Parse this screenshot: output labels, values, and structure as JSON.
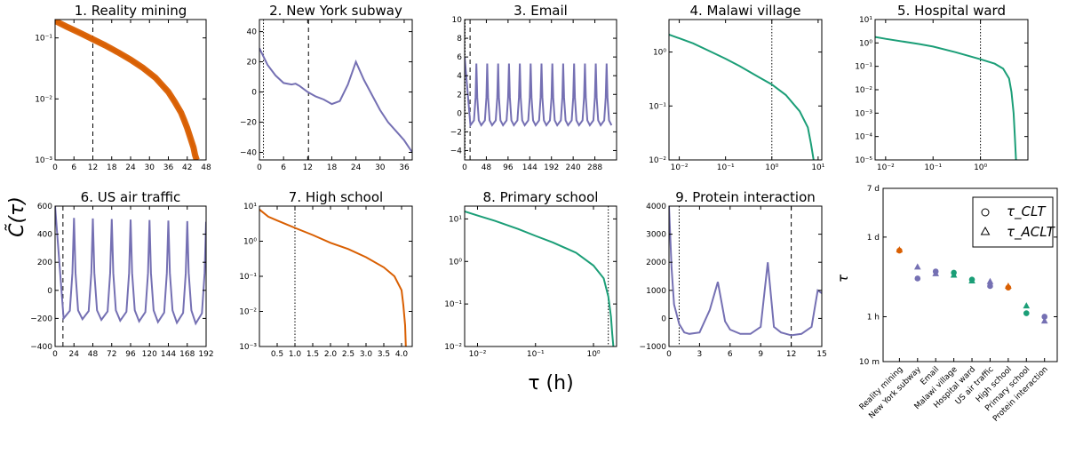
{
  "figure": {
    "ylabel_shared": "C̃(τ)",
    "xlabel_shared": "τ (h)"
  },
  "chart_data": [
    {
      "id": "p1",
      "type": "line",
      "title": "1. Reality mining",
      "color": "#d95f02",
      "xscale": "linear",
      "yscale": "log",
      "xlim": [
        0,
        48
      ],
      "ylim": [
        0.001,
        0.2
      ],
      "xticks": [
        0,
        6,
        12,
        18,
        24,
        30,
        36,
        42,
        48
      ],
      "yticks": [
        {
          "v": 0.1,
          "label": "10⁻¹"
        },
        {
          "v": 0.01,
          "label": "10⁻²"
        },
        {
          "v": 0.001,
          "label": "10⁻³"
        }
      ],
      "vlines": [
        {
          "x": 12,
          "style": "dashed"
        }
      ],
      "band": true,
      "series": [
        {
          "x": [
            0,
            4,
            8,
            12,
            16,
            20,
            24,
            28,
            32,
            36,
            38,
            40,
            41,
            42,
            43,
            44,
            44.5,
            45
          ],
          "y": [
            0.19,
            0.15,
            0.12,
            0.095,
            0.075,
            0.058,
            0.044,
            0.032,
            0.022,
            0.013,
            0.009,
            0.006,
            0.0045,
            0.0033,
            0.0023,
            0.0016,
            0.0012,
            0.001
          ]
        }
      ]
    },
    {
      "id": "p2",
      "type": "line",
      "title": "2. New York subway",
      "color": "#7570b3",
      "xscale": "linear",
      "yscale": "linear",
      "xlim": [
        0,
        38
      ],
      "ylim": [
        -45,
        48
      ],
      "xticks": [
        0,
        6,
        12,
        18,
        24,
        30,
        36
      ],
      "yticks": [
        {
          "v": 40,
          "label": "40"
        },
        {
          "v": 20,
          "label": "20"
        },
        {
          "v": 0,
          "label": "0"
        },
        {
          "v": -20,
          "label": "−20"
        },
        {
          "v": -40,
          "label": "−40"
        }
      ],
      "vlines": [
        {
          "x": 1,
          "style": "dotted"
        },
        {
          "x": 12.2,
          "style": "dashed"
        }
      ],
      "series": [
        {
          "x": [
            0,
            2,
            4,
            6,
            8,
            9,
            10,
            12,
            14,
            16,
            18,
            20,
            22,
            24,
            26,
            28,
            30,
            32,
            34,
            36,
            38
          ],
          "y": [
            29,
            18,
            11,
            6,
            5,
            5.5,
            4,
            0,
            -3,
            -5,
            -8,
            -6,
            5,
            20,
            8,
            -2,
            -12,
            -20,
            -26,
            -32,
            -40
          ]
        }
      ]
    },
    {
      "id": "p3",
      "type": "line",
      "title": "3. Email",
      "color": "#7570b3",
      "xscale": "linear",
      "yscale": "linear",
      "xlim": [
        0,
        336
      ],
      "ylim": [
        -5,
        10
      ],
      "xticks": [
        0,
        48,
        96,
        144,
        192,
        240,
        288
      ],
      "yticks": [
        {
          "v": 10,
          "label": "10"
        },
        {
          "v": 8,
          "label": "8"
        },
        {
          "v": 6,
          "label": "6"
        },
        {
          "v": 4,
          "label": "4"
        },
        {
          "v": 2,
          "label": "2"
        },
        {
          "v": 0,
          "label": "0"
        },
        {
          "v": -2,
          "label": "−2"
        },
        {
          "v": -4,
          "label": "−4"
        }
      ],
      "vlines": [
        {
          "x": 1,
          "style": "dotted"
        },
        {
          "x": 12,
          "style": "dashed"
        }
      ],
      "oscillation": {
        "period": 24,
        "peak": 5.3,
        "trough": -1.3,
        "start": 2,
        "init": 6
      },
      "series": []
    },
    {
      "id": "p4",
      "type": "line",
      "title": "4. Malawi village",
      "color": "#1b9e77",
      "xscale": "log",
      "yscale": "log",
      "xlim": [
        0.006,
        12
      ],
      "ylim": [
        0.01,
        4
      ],
      "xticks": [
        {
          "v": 0.01,
          "label": "10⁻²"
        },
        {
          "v": 0.1,
          "label": "10⁻¹"
        },
        {
          "v": 1,
          "label": "10⁰"
        },
        {
          "v": 10,
          "label": "10¹"
        }
      ],
      "yticks": [
        {
          "v": 1,
          "label": "10⁰"
        },
        {
          "v": 0.1,
          "label": "10⁻¹"
        },
        {
          "v": 0.01,
          "label": "10⁻²"
        }
      ],
      "vlines": [
        {
          "x": 1,
          "style": "dotted"
        }
      ],
      "series": [
        {
          "x": [
            0.006,
            0.01,
            0.02,
            0.05,
            0.1,
            0.2,
            0.5,
            1,
            2,
            4,
            6,
            7,
            8
          ],
          "y": [
            2.1,
            1.8,
            1.45,
            1.0,
            0.75,
            0.55,
            0.35,
            0.25,
            0.16,
            0.08,
            0.04,
            0.02,
            0.01
          ]
        }
      ]
    },
    {
      "id": "p5",
      "type": "line",
      "title": "5. Hospital ward",
      "color": "#1b9e77",
      "xscale": "log",
      "yscale": "log",
      "xlim": [
        0.006,
        10
      ],
      "ylim": [
        1e-05,
        10
      ],
      "xticks": [
        {
          "v": 0.01,
          "label": "10⁻²"
        },
        {
          "v": 0.1,
          "label": "10⁻¹"
        },
        {
          "v": 1,
          "label": "10⁰"
        }
      ],
      "yticks": [
        {
          "v": 10,
          "label": "10¹"
        },
        {
          "v": 1,
          "label": "10⁰"
        },
        {
          "v": 0.1,
          "label": "10⁻¹"
        },
        {
          "v": 0.01,
          "label": "10⁻²"
        },
        {
          "v": 0.001,
          "label": "10⁻³"
        },
        {
          "v": 0.0001,
          "label": "10⁻⁴"
        },
        {
          "v": 1e-05,
          "label": "10⁻⁵"
        }
      ],
      "vlines": [
        {
          "x": 1,
          "style": "dotted"
        }
      ],
      "series": [
        {
          "x": [
            0.006,
            0.01,
            0.05,
            0.1,
            0.3,
            1,
            2,
            3,
            4,
            4.5,
            5,
            5.3,
            5.6
          ],
          "y": [
            1.8,
            1.5,
            0.9,
            0.7,
            0.4,
            0.2,
            0.13,
            0.08,
            0.03,
            0.008,
            0.001,
            0.0001,
            1e-05
          ]
        }
      ]
    },
    {
      "id": "p6",
      "type": "line",
      "title": "6. US air traffic",
      "color": "#7570b3",
      "xscale": "linear",
      "yscale": "linear",
      "xlim": [
        0,
        192
      ],
      "ylim": [
        -400,
        600
      ],
      "xticks": [
        0,
        24,
        48,
        72,
        96,
        120,
        144,
        168,
        192
      ],
      "yticks": [
        {
          "v": 600,
          "label": "600"
        },
        {
          "v": 400,
          "label": "400"
        },
        {
          "v": 200,
          "label": "200"
        },
        {
          "v": 0,
          "label": "0"
        },
        {
          "v": -200,
          "label": "−200"
        },
        {
          "v": -400,
          "label": "−400"
        }
      ],
      "vlines": [
        {
          "x": 10,
          "style": "dashed"
        }
      ],
      "oscillation": {
        "period": 24,
        "peak": 520,
        "trough": -200,
        "start": 0,
        "init": 600,
        "decay": 0.12
      },
      "series": []
    },
    {
      "id": "p7",
      "type": "line",
      "title": "7. High school",
      "color": "#d95f02",
      "xscale": "linear",
      "yscale": "log",
      "xlim": [
        0,
        4.3
      ],
      "ylim": [
        0.001,
        10
      ],
      "xticks": [
        0.5,
        1.0,
        1.5,
        2.0,
        2.5,
        3.0,
        3.5,
        4.0
      ],
      "xticklabels": [
        "0.5",
        "1.0",
        "1.5",
        "2.0",
        "2.5",
        "3.0",
        "3.5",
        "4.0"
      ],
      "yticks": [
        {
          "v": 10,
          "label": "10¹"
        },
        {
          "v": 1,
          "label": "10⁰"
        },
        {
          "v": 0.1,
          "label": "10⁻¹"
        },
        {
          "v": 0.01,
          "label": "10⁻²"
        },
        {
          "v": 0.001,
          "label": "10⁻³"
        }
      ],
      "vlines": [
        {
          "x": 1,
          "style": "dotted"
        }
      ],
      "series": [
        {
          "x": [
            0,
            0.25,
            0.5,
            1.0,
            1.5,
            2.0,
            2.5,
            3.0,
            3.5,
            3.8,
            4.0,
            4.05,
            4.1,
            4.12
          ],
          "y": [
            8,
            5,
            3.9,
            2.4,
            1.5,
            0.9,
            0.6,
            0.35,
            0.18,
            0.1,
            0.04,
            0.015,
            0.004,
            0.001
          ]
        }
      ]
    },
    {
      "id": "p8",
      "type": "line",
      "title": "8. Primary school",
      "color": "#1b9e77",
      "xscale": "log",
      "yscale": "log",
      "xlim": [
        0.006,
        2.5
      ],
      "ylim": [
        0.01,
        20
      ],
      "xticks": [
        {
          "v": 0.01,
          "label": "10⁻²"
        },
        {
          "v": 0.1,
          "label": "10⁻¹"
        },
        {
          "v": 1,
          "label": "10⁰"
        }
      ],
      "yticks": [
        {
          "v": 10,
          "label": "10¹"
        },
        {
          "v": 1,
          "label": "10⁰"
        },
        {
          "v": 0.1,
          "label": "10⁻¹"
        },
        {
          "v": 0.01,
          "label": "10⁻²"
        }
      ],
      "vlines": [
        {
          "x": 1.8,
          "style": "dotted"
        }
      ],
      "series": [
        {
          "x": [
            0.006,
            0.01,
            0.02,
            0.05,
            0.1,
            0.2,
            0.5,
            1,
            1.5,
            1.8,
            2.0,
            2.1,
            2.2
          ],
          "y": [
            15,
            12,
            9,
            5.8,
            4,
            2.8,
            1.6,
            0.8,
            0.4,
            0.15,
            0.05,
            0.02,
            0.01
          ]
        }
      ]
    },
    {
      "id": "p9",
      "type": "line",
      "title": "9. Protein interaction",
      "color": "#7570b3",
      "xscale": "linear",
      "yscale": "linear",
      "xlim": [
        0,
        15
      ],
      "ylim": [
        -1000,
        4000
      ],
      "xticks": [
        0,
        3,
        6,
        9,
        12,
        15
      ],
      "yticks": [
        {
          "v": 4000,
          "label": "4000"
        },
        {
          "v": 3000,
          "label": "3000"
        },
        {
          "v": 2000,
          "label": "2000"
        },
        {
          "v": 1000,
          "label": "1000"
        },
        {
          "v": 0,
          "label": "0"
        },
        {
          "v": -1000,
          "label": "−1000"
        }
      ],
      "vlines": [
        {
          "x": 1,
          "style": "dotted"
        },
        {
          "x": 12,
          "style": "dashed"
        }
      ],
      "series": [
        {
          "x": [
            0,
            0.25,
            0.5,
            1,
            1.5,
            2,
            3,
            4,
            4.8,
            5.5,
            6,
            7,
            8,
            9,
            9.7,
            10.3,
            11,
            12,
            13,
            14,
            14.6,
            15
          ],
          "y": [
            4000,
            1800,
            500,
            -200,
            -500,
            -550,
            -500,
            300,
            1300,
            -100,
            -400,
            -550,
            -550,
            -300,
            2000,
            -300,
            -500,
            -600,
            -550,
            -300,
            1000,
            900
          ]
        }
      ]
    },
    {
      "id": "p10",
      "type": "scatter",
      "ylim_hours": [
        0.1667,
        168
      ],
      "yticks": [
        {
          "v": 168,
          "label": "7 d"
        },
        {
          "v": 24,
          "label": "1 d"
        },
        {
          "v": 1,
          "label": "1 h"
        },
        {
          "v": 0.1667,
          "label": "10 m"
        }
      ],
      "ylabel": "τ",
      "categories": [
        "Reality mining",
        "New York subway",
        "Email",
        "Malawi village",
        "Hospital ward",
        "US air traffic",
        "High school",
        "Primary school",
        "Protein interaction"
      ],
      "colors": [
        "#d95f02",
        "#7570b3",
        "#7570b3",
        "#1b9e77",
        "#1b9e77",
        "#7570b3",
        "#d95f02",
        "#1b9e77",
        "#7570b3"
      ],
      "legend": {
        "position": "top-right",
        "clt": "τ_CLT",
        "aclt": "τ_ACLT"
      },
      "series": [
        {
          "name": "τ_CLT",
          "marker": "circle",
          "values": [
            14,
            4.6,
            6.1,
            5.8,
            4.4,
            3.4,
            3.2,
            1.15,
            1.0
          ]
        },
        {
          "name": "τ_ACLT",
          "marker": "triangle",
          "values": [
            14.5,
            7.3,
            5.6,
            5.3,
            4.2,
            4.1,
            3.4,
            1.55,
            0.85
          ]
        }
      ]
    }
  ]
}
